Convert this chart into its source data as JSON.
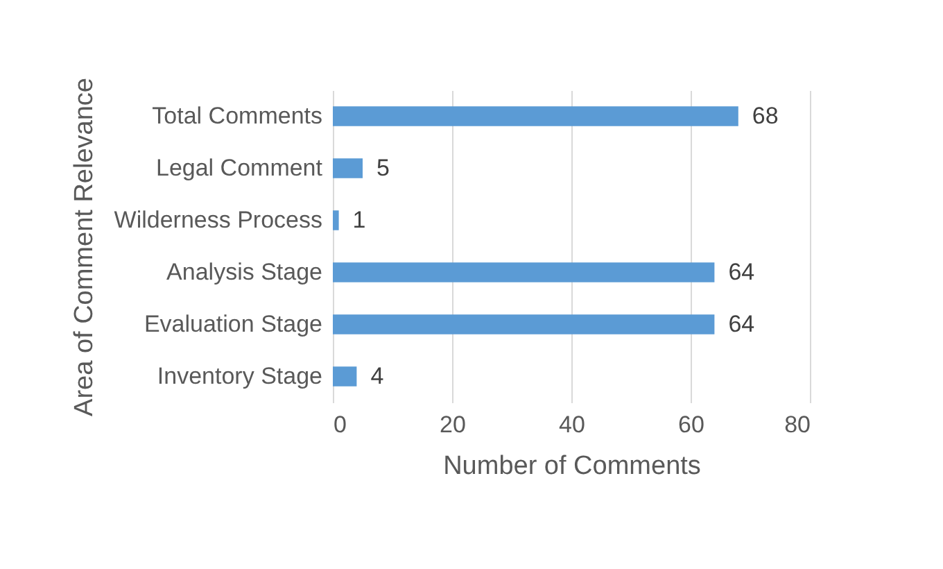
{
  "chart_data": {
    "type": "bar",
    "orientation": "horizontal",
    "categories": [
      "Total  Comments",
      "Legal Comment",
      "Wilderness Process",
      "Analysis Stage",
      "Evaluation Stage",
      "Inventory Stage"
    ],
    "values": [
      68,
      5,
      1,
      64,
      64,
      4
    ],
    "color": "#5b9bd5",
    "xlim": [
      0,
      80
    ],
    "xticks": [
      0,
      20,
      40,
      60,
      80
    ],
    "grid": "x",
    "data_labels": true,
    "xlabel": "Number of Comments",
    "ylabel": "Area of Comment Relevance"
  }
}
